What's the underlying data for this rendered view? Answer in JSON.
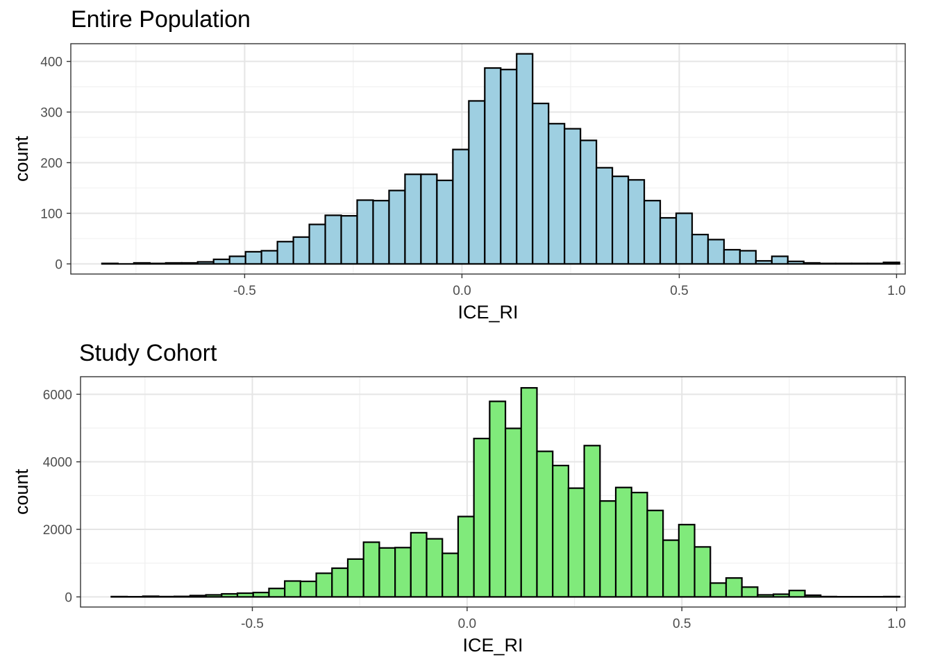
{
  "chart_data": [
    {
      "type": "bar",
      "title": "Entire Population",
      "xlabel": "ICE_RI",
      "ylabel": "count",
      "fill_color": "#9ecfe1",
      "xlim": [
        -0.9,
        1.02
      ],
      "ylim": [
        -20,
        435
      ],
      "x_ticks": [
        -0.5,
        0.0,
        0.5,
        1.0
      ],
      "x_tick_labels": [
        "-0.5",
        "0.0",
        "0.5",
        "1.0"
      ],
      "y_ticks": [
        0,
        100,
        200,
        300,
        400
      ],
      "y_tick_labels": [
        "0",
        "100",
        "200",
        "300",
        "400"
      ],
      "grid": true,
      "bin_width": 0.0367,
      "bin_start": -0.8283,
      "values": [
        1,
        0,
        2,
        1,
        2,
        2,
        4,
        9,
        15,
        24,
        26,
        44,
        53,
        78,
        96,
        95,
        126,
        125,
        145,
        177,
        177,
        165,
        226,
        322,
        387,
        384,
        415,
        317,
        277,
        267,
        244,
        190,
        173,
        166,
        125,
        91,
        100,
        58,
        48,
        28,
        26,
        6,
        15,
        5,
        2,
        1,
        1,
        1,
        1,
        3
      ]
    },
    {
      "type": "bar",
      "title": "Study Cohort",
      "xlabel": "ICE_RI",
      "ylabel": "count",
      "fill_color": "#80ea7b",
      "xlim": [
        -0.9,
        1.02
      ],
      "ylim": [
        -300,
        6520
      ],
      "x_ticks": [
        -0.5,
        0.0,
        0.5,
        1.0
      ],
      "x_tick_labels": [
        "-0.5",
        "0.0",
        "0.5",
        "1.0"
      ],
      "y_ticks": [
        0,
        2000,
        4000,
        6000
      ],
      "y_tick_labels": [
        "0",
        "2000",
        "4000",
        "6000"
      ],
      "grid": true,
      "bin_width": 0.0367,
      "bin_start": -0.8283,
      "values": [
        10,
        5,
        20,
        10,
        15,
        40,
        60,
        90,
        110,
        130,
        250,
        470,
        460,
        700,
        850,
        1120,
        1620,
        1450,
        1460,
        1900,
        1720,
        1290,
        2380,
        4690,
        5790,
        4990,
        6190,
        4310,
        3890,
        3220,
        4480,
        2840,
        3240,
        3090,
        2560,
        1680,
        2140,
        1480,
        410,
        560,
        290,
        60,
        80,
        190,
        50,
        10,
        5,
        5,
        5,
        10
      ]
    }
  ]
}
